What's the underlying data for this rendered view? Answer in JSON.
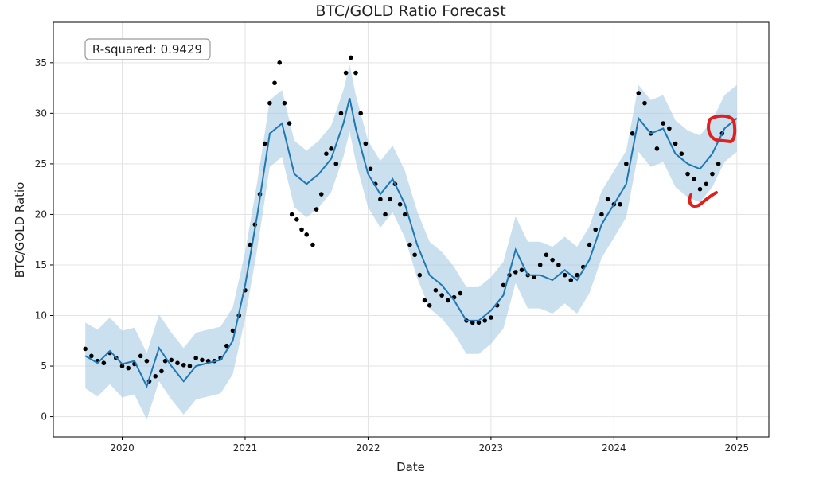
{
  "chart_data": {
    "type": "line",
    "title": "BTC/GOLD Ratio Forecast",
    "x_label": "Date",
    "y_label": "BTC/GOLD Ratio",
    "annotation": "R-squared: 0.9429",
    "grid": true,
    "xlim": [
      2019.44,
      2025.26
    ],
    "xticks": [
      2020,
      2021,
      2022,
      2023,
      2024,
      2025
    ],
    "ylim": [
      -2,
      39
    ],
    "yticks": [
      0,
      5,
      10,
      15,
      20,
      25,
      30,
      35
    ],
    "points": {
      "color": "#000000",
      "x": [
        2019.7,
        2019.75,
        2019.8,
        2019.85,
        2019.9,
        2019.95,
        2020.0,
        2020.05,
        2020.1,
        2020.15,
        2020.2,
        2020.22,
        2020.27,
        2020.32,
        2020.35,
        2020.4,
        2020.45,
        2020.5,
        2020.55,
        2020.6,
        2020.65,
        2020.7,
        2020.75,
        2020.8,
        2020.85,
        2020.9,
        2020.95,
        2021.0,
        2021.04,
        2021.08,
        2021.12,
        2021.16,
        2021.2,
        2021.24,
        2021.28,
        2021.32,
        2021.36,
        2021.38,
        2021.42,
        2021.46,
        2021.5,
        2021.55,
        2021.58,
        2021.62,
        2021.66,
        2021.7,
        2021.74,
        2021.78,
        2021.82,
        2021.86,
        2021.9,
        2021.94,
        2021.98,
        2022.02,
        2022.06,
        2022.1,
        2022.14,
        2022.18,
        2022.22,
        2022.26,
        2022.3,
        2022.34,
        2022.38,
        2022.42,
        2022.46,
        2022.5,
        2022.55,
        2022.6,
        2022.65,
        2022.7,
        2022.75,
        2022.8,
        2022.85,
        2022.9,
        2022.95,
        2023.0,
        2023.05,
        2023.1,
        2023.15,
        2023.2,
        2023.25,
        2023.3,
        2023.35,
        2023.4,
        2023.45,
        2023.5,
        2023.55,
        2023.6,
        2023.65,
        2023.7,
        2023.75,
        2023.8,
        2023.85,
        2023.9,
        2023.95,
        2024.0,
        2024.05,
        2024.1,
        2024.15,
        2024.2,
        2024.25,
        2024.3,
        2024.35,
        2024.4,
        2024.45,
        2024.5,
        2024.55,
        2024.6,
        2024.65,
        2024.7,
        2024.75,
        2024.8,
        2024.85,
        2024.88
      ],
      "y": [
        6.7,
        6.0,
        5.5,
        5.3,
        6.3,
        5.8,
        5.0,
        4.8,
        5.2,
        6.0,
        5.5,
        3.5,
        4.0,
        4.5,
        5.5,
        5.6,
        5.3,
        5.1,
        5.0,
        5.8,
        5.6,
        5.5,
        5.5,
        5.8,
        7.0,
        8.5,
        10.0,
        12.5,
        17.0,
        19.0,
        22.0,
        27.0,
        31.0,
        33.0,
        35.0,
        31.0,
        29.0,
        20.0,
        19.5,
        18.5,
        18.0,
        17.0,
        20.5,
        22.0,
        26.0,
        26.5,
        25.0,
        30.0,
        34.0,
        35.5,
        34.0,
        30.0,
        27.0,
        24.5,
        23.0,
        21.5,
        20.0,
        21.5,
        23.0,
        21.0,
        20.0,
        17.0,
        16.0,
        14.0,
        11.5,
        11.0,
        12.5,
        12.0,
        11.5,
        11.8,
        12.2,
        9.5,
        9.3,
        9.3,
        9.5,
        9.8,
        11.0,
        13.0,
        14.0,
        14.3,
        14.5,
        14.0,
        13.8,
        15.0,
        16.0,
        15.5,
        15.0,
        14.0,
        13.5,
        14.0,
        14.8,
        17.0,
        18.5,
        20.0,
        21.5,
        21.0,
        21.0,
        25.0,
        28.0,
        32.0,
        31.0,
        28.0,
        26.5,
        29.0,
        28.5,
        27.0,
        26.0,
        24.0,
        23.5,
        22.5,
        23.0,
        24.0,
        25.0,
        28.0
      ]
    },
    "forecast": {
      "color": "#1f77b4",
      "band_color": "#a6cbe3",
      "x": [
        2019.7,
        2019.8,
        2019.9,
        2020.0,
        2020.1,
        2020.2,
        2020.3,
        2020.4,
        2020.5,
        2020.6,
        2020.7,
        2020.8,
        2020.9,
        2021.0,
        2021.1,
        2021.2,
        2021.3,
        2021.4,
        2021.5,
        2021.6,
        2021.7,
        2021.8,
        2021.85,
        2021.9,
        2022.0,
        2022.1,
        2022.2,
        2022.3,
        2022.4,
        2022.5,
        2022.6,
        2022.7,
        2022.8,
        2022.9,
        2023.0,
        2023.1,
        2023.2,
        2023.3,
        2023.4,
        2023.5,
        2023.6,
        2023.7,
        2023.8,
        2023.9,
        2024.0,
        2024.1,
        2024.2,
        2024.3,
        2024.4,
        2024.5,
        2024.6,
        2024.7,
        2024.8,
        2024.9,
        2025.0
      ],
      "values": [
        6.0,
        5.3,
        6.5,
        5.2,
        5.5,
        3.0,
        6.8,
        5.0,
        3.5,
        5.0,
        5.3,
        5.6,
        7.5,
        13.0,
        20.0,
        28.0,
        29.0,
        24.0,
        23.0,
        24.0,
        25.5,
        29.0,
        31.5,
        28.5,
        24.0,
        22.0,
        23.5,
        21.0,
        17.0,
        14.0,
        13.0,
        11.5,
        9.5,
        9.5,
        10.5,
        12.0,
        16.5,
        14.0,
        14.0,
        13.5,
        14.5,
        13.5,
        15.5,
        19.0,
        21.0,
        23.0,
        29.5,
        28.0,
        28.5,
        26.0,
        25.0,
        24.5,
        26.0,
        28.5,
        29.5
      ],
      "lower": [
        2.8,
        2.0,
        3.2,
        1.9,
        2.2,
        -0.3,
        3.5,
        1.7,
        0.2,
        1.7,
        2.0,
        2.3,
        4.2,
        9.7,
        16.7,
        24.7,
        25.7,
        20.7,
        19.7,
        20.7,
        22.2,
        25.7,
        28.2,
        25.2,
        20.7,
        18.7,
        20.2,
        17.7,
        13.7,
        10.7,
        9.7,
        8.2,
        6.2,
        6.2,
        7.2,
        8.7,
        13.2,
        10.7,
        10.7,
        10.2,
        11.2,
        10.2,
        12.2,
        15.7,
        17.7,
        19.7,
        26.2,
        24.7,
        25.2,
        22.7,
        21.7,
        21.2,
        22.7,
        25.2,
        26.2
      ],
      "upper": [
        9.3,
        8.6,
        9.8,
        8.5,
        8.8,
        6.3,
        10.1,
        8.3,
        6.8,
        8.3,
        8.6,
        8.9,
        10.8,
        16.3,
        23.3,
        31.3,
        32.3,
        27.3,
        26.3,
        27.3,
        28.8,
        32.3,
        34.8,
        31.8,
        27.3,
        25.3,
        26.8,
        24.3,
        20.3,
        17.3,
        16.3,
        14.8,
        12.8,
        12.8,
        13.8,
        15.3,
        19.8,
        17.3,
        17.3,
        16.8,
        17.8,
        16.8,
        18.8,
        22.3,
        24.3,
        26.3,
        32.8,
        31.3,
        31.8,
        29.3,
        28.3,
        27.8,
        29.3,
        31.8,
        32.8
      ]
    }
  }
}
